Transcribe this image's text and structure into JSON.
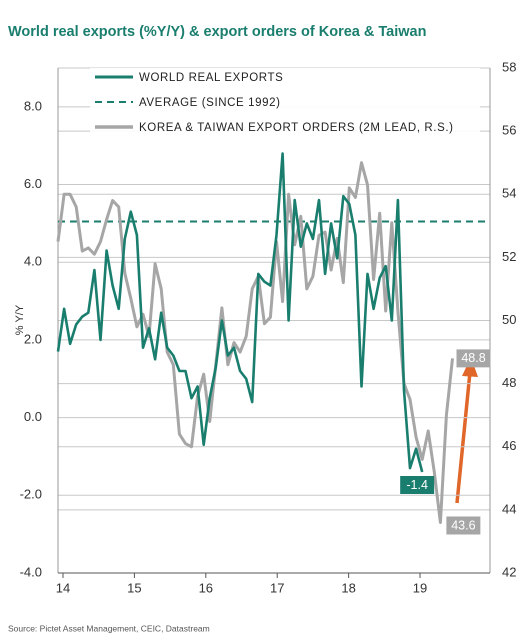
{
  "chart_data": {
    "type": "line",
    "title": "World real exports (%Y/Y) & export orders of Korea & Taiwan",
    "ylabel": "% Y/Y",
    "source": "Source: Pictet Asset Management, CEIC, Datastream",
    "xlim": [
      2013.93,
      2019.98
    ],
    "xticks": [
      {
        "value": 2014,
        "label": "14"
      },
      {
        "value": 2015,
        "label": "15"
      },
      {
        "value": 2016,
        "label": "16"
      },
      {
        "value": 2017,
        "label": "17"
      },
      {
        "value": 2018,
        "label": "18"
      },
      {
        "value": 2019,
        "label": "19"
      }
    ],
    "ylim": [
      -4,
      9
    ],
    "yticks": [
      {
        "value": -4,
        "label": "-4.0"
      },
      {
        "value": -2,
        "label": "-2.0"
      },
      {
        "value": 0,
        "label": "0.0"
      },
      {
        "value": 2,
        "label": "2.0"
      },
      {
        "value": 4,
        "label": "4.0"
      },
      {
        "value": 6,
        "label": "6.0"
      },
      {
        "value": 8,
        "label": "8.0"
      }
    ],
    "y2lim": [
      42,
      58
    ],
    "y2ticks": [
      42,
      44,
      46,
      48,
      50,
      52,
      54,
      56,
      58
    ],
    "grid": true,
    "x": [
      2013.93,
      2014.015,
      2014.1,
      2014.185,
      2014.27,
      2014.355,
      2014.44,
      2014.525,
      2014.61,
      2014.695,
      2014.78,
      2014.865,
      2014.95,
      2015.035,
      2015.12,
      2015.205,
      2015.29,
      2015.375,
      2015.46,
      2015.545,
      2015.63,
      2015.715,
      2015.8,
      2015.885,
      2015.97,
      2016.055,
      2016.14,
      2016.225,
      2016.31,
      2016.395,
      2016.48,
      2016.565,
      2016.65,
      2016.735,
      2016.82,
      2016.905,
      2016.99,
      2017.075,
      2017.16,
      2017.245,
      2017.33,
      2017.415,
      2017.5,
      2017.585,
      2017.67,
      2017.755,
      2017.84,
      2017.925,
      2018.01,
      2018.095,
      2018.18,
      2018.265,
      2018.35,
      2018.435,
      2018.52,
      2018.605,
      2018.69,
      2018.775,
      2018.86,
      2018.945,
      2019.03,
      2019.115,
      2019.2,
      2019.285,
      2019.37,
      2019.455
    ],
    "series": [
      {
        "name": "WORLD REAL EXPORTS",
        "color": "#1a7e6e",
        "axis": "y",
        "values": [
          1.7,
          2.8,
          1.9,
          2.4,
          2.6,
          2.7,
          3.8,
          2.0,
          4.3,
          3.4,
          2.8,
          4.6,
          5.3,
          4.7,
          1.8,
          2.3,
          1.5,
          2.7,
          1.8,
          1.6,
          1.2,
          1.2,
          0.5,
          0.8,
          -0.7,
          0.5,
          1.3,
          2.5,
          1.6,
          1.8,
          1.2,
          1.0,
          0.4,
          3.7,
          3.5,
          3.4,
          4.7,
          6.8,
          2.5,
          5.6,
          4.4,
          5.0,
          4.6,
          5.6,
          3.7,
          5.0,
          4.1,
          5.7,
          5.5,
          4.7,
          0.8,
          3.7,
          2.8,
          3.6,
          3.9,
          2.5,
          5.6,
          0.7,
          -1.3,
          -0.8,
          -1.4,
          null,
          null,
          null,
          null,
          null
        ]
      },
      {
        "name": "KOREA & TAIWAN EXPORT ORDERS (2M LEAD, R.S.)",
        "color": "#a6a6a6",
        "axis": "y2",
        "values": [
          52.5,
          54,
          54,
          53.6,
          52.2,
          52.3,
          52.1,
          52.5,
          53.2,
          53.8,
          53.6,
          51.5,
          50.7,
          49.8,
          50.2,
          49.5,
          51.8,
          51.0,
          49.0,
          48.6,
          46.4,
          46.1,
          46.0,
          47.6,
          48.3,
          46.8,
          48.6,
          50.4,
          48.6,
          49.3,
          49.0,
          49.5,
          51.0,
          51.4,
          49.9,
          50.1,
          52.5,
          50.6,
          54.0,
          52.4,
          53.3,
          51.0,
          51.4,
          52.7,
          52.8,
          51.6,
          52.6,
          51.2,
          54.2,
          53.9,
          55.0,
          54.3,
          51.3,
          53.4,
          50.3,
          53.1,
          50.3,
          48.0,
          47.5,
          46.3,
          45.6,
          46.5,
          45.2,
          43.6,
          47.0,
          48.8
        ]
      }
    ],
    "reference_lines": [
      {
        "name": "AVERAGE (SINCE 1992)",
        "value": 5.05,
        "color": "#1a7e6e",
        "dashed": true
      }
    ]
  }
}
